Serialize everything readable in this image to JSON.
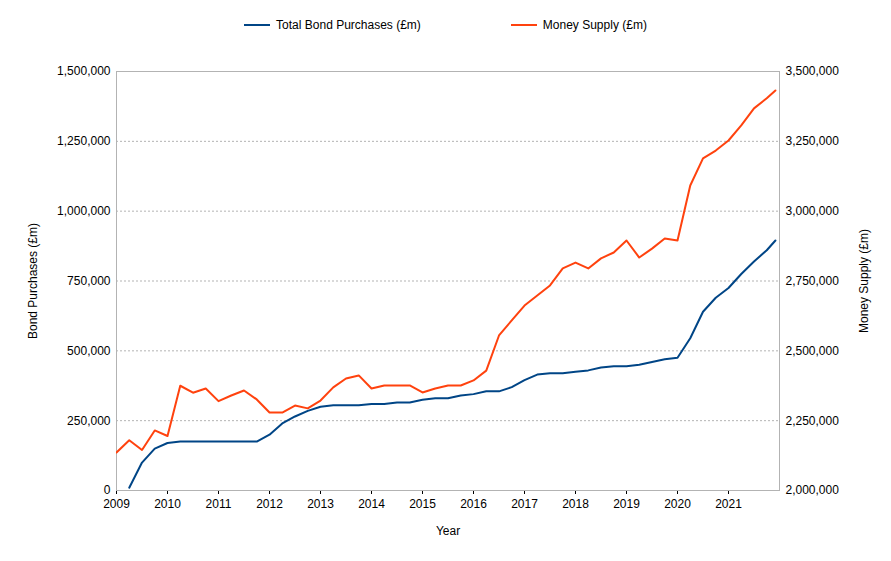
{
  "chart_data": {
    "type": "line",
    "x_label": "Year",
    "y_label": "Bond Purchases (£m)",
    "y2_label": "Money Supply (£m)",
    "legend": "top",
    "grid": true,
    "x": [
      2009,
      2009.25,
      2009.5,
      2009.75,
      2010,
      2010.25,
      2010.5,
      2010.75,
      2011,
      2011.25,
      2011.5,
      2011.75,
      2012,
      2012.25,
      2012.5,
      2012.75,
      2013,
      2013.25,
      2013.5,
      2013.75,
      2014,
      2014.25,
      2014.5,
      2014.75,
      2015,
      2015.25,
      2015.5,
      2015.75,
      2016,
      2016.25,
      2016.5,
      2016.75,
      2017,
      2017.25,
      2017.5,
      2017.75,
      2018,
      2018.25,
      2018.5,
      2018.75,
      2019,
      2019.25,
      2019.5,
      2019.75,
      2020,
      2020.25,
      2020.5,
      2020.75,
      2021,
      2021.25,
      2021.5,
      2021.75,
      2021.92
    ],
    "xlim": [
      2009,
      2022
    ],
    "xticks": [
      2009,
      2010,
      2011,
      2012,
      2013,
      2014,
      2015,
      2016,
      2017,
      2018,
      2019,
      2020,
      2021
    ],
    "ylim": [
      0,
      1500000
    ],
    "yticks": [
      0,
      {
        "value": 250000,
        "label": "250,000"
      },
      {
        "value": 500000,
        "label": "500,000"
      },
      {
        "value": 750000,
        "label": "750,000"
      },
      {
        "value": 1000000,
        "label": "1,000,000"
      },
      {
        "value": 1250000,
        "label": "1,250,000"
      },
      {
        "value": 1500000,
        "label": "1,500,000"
      }
    ],
    "y2lim": [
      2000000,
      3500000
    ],
    "y2ticks": [
      {
        "value": 2000000,
        "label": "2,000,000"
      },
      {
        "value": 2250000,
        "label": "2,250,000"
      },
      {
        "value": 2500000,
        "label": "2,500,000"
      },
      {
        "value": 2750000,
        "label": "2,750,000"
      },
      {
        "value": 3000000,
        "label": "3,000,000"
      },
      {
        "value": 3250000,
        "label": "3,250,000"
      },
      {
        "value": 3500000,
        "label": "3,500,000"
      }
    ],
    "series": [
      {
        "name": "Total Bond Purchases (£m)",
        "color": "#004586",
        "axis": "y",
        "values": [
          null,
          10000,
          100000,
          150000,
          170000,
          175000,
          175000,
          175000,
          175000,
          175000,
          175000,
          175000,
          200000,
          240000,
          265000,
          285000,
          300000,
          305000,
          305000,
          305000,
          310000,
          310000,
          315000,
          315000,
          325000,
          330000,
          330000,
          340000,
          345000,
          355000,
          355000,
          370000,
          395000,
          415000,
          420000,
          420000,
          425000,
          430000,
          440000,
          445000,
          445000,
          450000,
          460000,
          470000,
          475000,
          545000,
          640000,
          690000,
          725000,
          775000,
          820000,
          860000,
          895000
        ]
      },
      {
        "name": "Money Supply (£m)",
        "color": "#ff420e",
        "axis": "y2",
        "values": [
          2136000,
          2180000,
          2145000,
          2215000,
          2195000,
          2375000,
          2350000,
          2365000,
          2320000,
          2340000,
          2358000,
          2326000,
          2279000,
          2279000,
          2304000,
          2294000,
          2322000,
          2369000,
          2401000,
          2412000,
          2365000,
          2376000,
          2376000,
          2376000,
          2351000,
          2365000,
          2376000,
          2376000,
          2394000,
          2429000,
          2555000,
          2609000,
          2662000,
          2698000,
          2734000,
          2795000,
          2816000,
          2795000,
          2831000,
          2852000,
          2895000,
          2834000,
          2866000,
          2902000,
          2895000,
          3092000,
          3189000,
          3217000,
          3253000,
          3307000,
          3368000,
          3404000,
          3432000
        ]
      }
    ]
  }
}
